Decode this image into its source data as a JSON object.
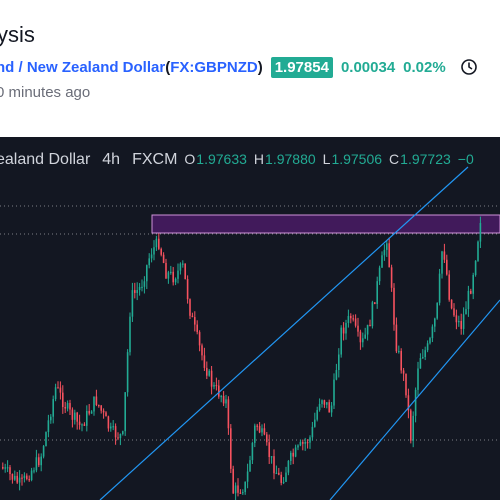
{
  "header": {
    "title": "ysis",
    "pair_name": "nd / New Zealand Dollar",
    "paren_open": "(",
    "ticker": "FX:GBPNZD",
    "paren_close": ")",
    "price": "1.97854",
    "change_abs": "0.00034",
    "change_pct": "0.02%",
    "time_ago": "0 minutes ago",
    "clock_icon": "clock-icon"
  },
  "chart_legend": {
    "title": "ealand Dollar",
    "interval": "4h",
    "source": "FXCM",
    "open_label": "O",
    "open": "1.97633",
    "high_label": "H",
    "high": "1.97880",
    "low_label": "L",
    "low": "1.97506",
    "close_label": "C",
    "close": "1.97723",
    "change": "−0"
  },
  "colors": {
    "up": "#22ab94",
    "down": "#f7525f",
    "trendline": "#2196f3",
    "zone_fill": "#7b1fa2",
    "zone_border": "#ce93d8",
    "grid_dotted": "#ffffff",
    "background": "#131722"
  },
  "chart_data": {
    "type": "candlestick",
    "symbol": "GBPNZD",
    "interval": "4h",
    "annotations": [
      "ascending channel",
      "resistance zone"
    ]
  }
}
